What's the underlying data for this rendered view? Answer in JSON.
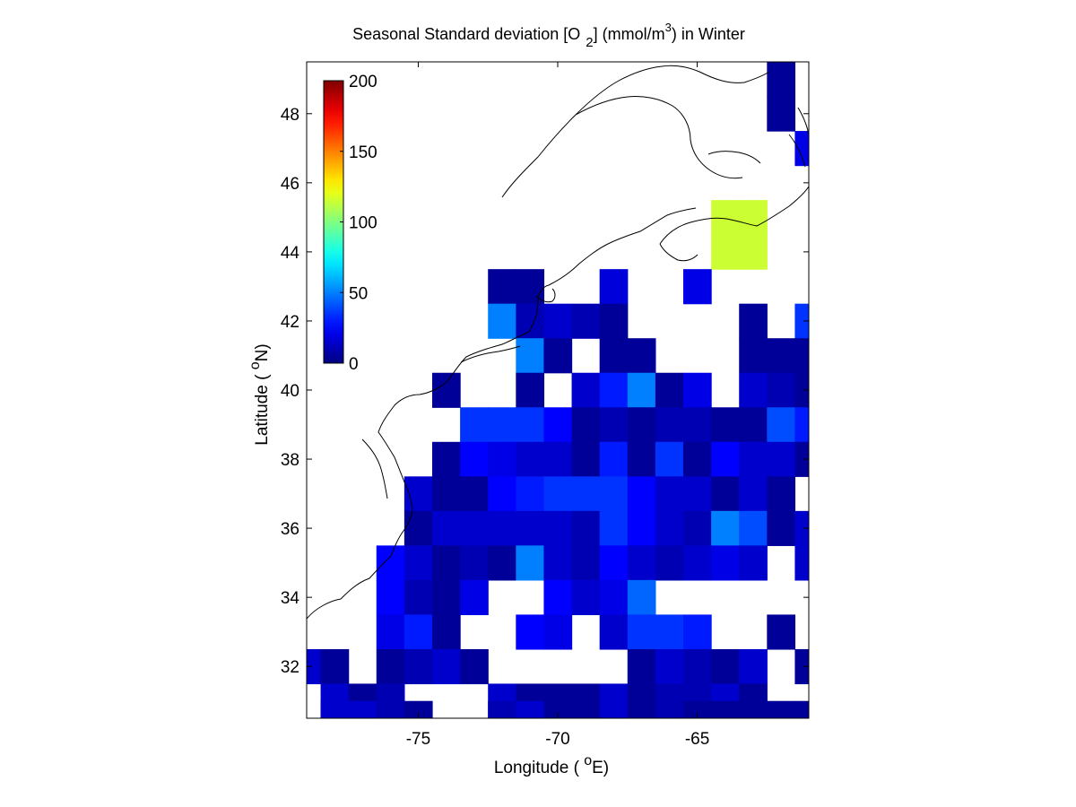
{
  "chart_data": {
    "type": "heatmap",
    "title": {
      "prefix": "Seasonal Standard deviation [O",
      "sub": "2",
      "middle": "] (mmol/m",
      "sup": "3",
      "suffix": ") in  Winter"
    },
    "xlabel": {
      "prefix": "Longitude ( ",
      "sup": "o",
      "suffix": "E)"
    },
    "ylabel": {
      "prefix": "Latitude ( ",
      "sup": "o",
      "suffix": "N)"
    },
    "xlim": [
      -79,
      -61
    ],
    "ylim": [
      30.5,
      49.5
    ],
    "x_ticks": [
      {
        "value": -75,
        "label": "-75"
      },
      {
        "value": -70,
        "label": "-70"
      },
      {
        "value": -65,
        "label": "-65"
      }
    ],
    "y_ticks": [
      {
        "value": 32,
        "label": "32"
      },
      {
        "value": 34,
        "label": "34"
      },
      {
        "value": 36,
        "label": "36"
      },
      {
        "value": 38,
        "label": "38"
      },
      {
        "value": 40,
        "label": "40"
      },
      {
        "value": 42,
        "label": "42"
      },
      {
        "value": 44,
        "label": "44"
      },
      {
        "value": 46,
        "label": "46"
      },
      {
        "value": 48,
        "label": "48"
      }
    ],
    "colorbar": {
      "colormap": "jet",
      "range": [
        0,
        200
      ],
      "placement": "upper-left inside axes",
      "ticks": [
        {
          "value": 0,
          "label": "0"
        },
        {
          "value": 50,
          "label": "50"
        },
        {
          "value": 100,
          "label": "100"
        },
        {
          "value": 150,
          "label": "150"
        },
        {
          "value": 200,
          "label": "200"
        }
      ]
    },
    "grid": false,
    "cell_size_deg": 1,
    "cells": [
      [
        -62,
        49,
        5
      ],
      [
        -62,
        48,
        5
      ],
      [
        -61,
        47,
        20
      ],
      [
        -64,
        44,
        115
      ],
      [
        -64,
        45,
        115
      ],
      [
        -63,
        44,
        115
      ],
      [
        -63,
        45,
        115
      ],
      [
        -72,
        43,
        5
      ],
      [
        -71,
        43,
        5
      ],
      [
        -68,
        43,
        18
      ],
      [
        -65,
        43,
        20
      ],
      [
        -72,
        42,
        50
      ],
      [
        -71,
        42,
        10
      ],
      [
        -70,
        42,
        15
      ],
      [
        -69,
        42,
        10
      ],
      [
        -68,
        42,
        5
      ],
      [
        -63,
        42,
        5
      ],
      [
        -61,
        42,
        35
      ],
      [
        -71,
        41,
        50
      ],
      [
        -70,
        41,
        5
      ],
      [
        -68,
        41,
        5
      ],
      [
        -67,
        41,
        5
      ],
      [
        -63,
        41,
        5
      ],
      [
        -62,
        41,
        5
      ],
      [
        -61,
        41,
        5
      ],
      [
        -74,
        40,
        5
      ],
      [
        -71,
        40,
        5
      ],
      [
        -69,
        40,
        15
      ],
      [
        -68,
        40,
        30
      ],
      [
        -67,
        40,
        50
      ],
      [
        -66,
        40,
        5
      ],
      [
        -65,
        40,
        20
      ],
      [
        -63,
        40,
        15
      ],
      [
        -62,
        40,
        10
      ],
      [
        -61,
        40,
        5
      ],
      [
        -73,
        39,
        35
      ],
      [
        -72,
        39,
        35
      ],
      [
        -71,
        39,
        35
      ],
      [
        -70,
        39,
        25
      ],
      [
        -69,
        39,
        5
      ],
      [
        -68,
        39,
        10
      ],
      [
        -67,
        39,
        5
      ],
      [
        -66,
        39,
        10
      ],
      [
        -65,
        39,
        10
      ],
      [
        -64,
        39,
        5
      ],
      [
        -63,
        39,
        5
      ],
      [
        -62,
        39,
        40
      ],
      [
        -61,
        39,
        30
      ],
      [
        -74,
        38,
        5
      ],
      [
        -73,
        38,
        25
      ],
      [
        -72,
        38,
        20
      ],
      [
        -71,
        38,
        15
      ],
      [
        -70,
        38,
        15
      ],
      [
        -69,
        38,
        5
      ],
      [
        -68,
        38,
        30
      ],
      [
        -67,
        38,
        5
      ],
      [
        -66,
        38,
        35
      ],
      [
        -65,
        38,
        5
      ],
      [
        -64,
        38,
        25
      ],
      [
        -63,
        38,
        15
      ],
      [
        -62,
        38,
        15
      ],
      [
        -61,
        38,
        5
      ],
      [
        -75,
        37,
        15
      ],
      [
        -74,
        37,
        5
      ],
      [
        -73,
        37,
        5
      ],
      [
        -72,
        37,
        25
      ],
      [
        -71,
        37,
        30
      ],
      [
        -70,
        37,
        35
      ],
      [
        -69,
        37,
        35
      ],
      [
        -68,
        37,
        35
      ],
      [
        -67,
        37,
        25
      ],
      [
        -66,
        37,
        15
      ],
      [
        -65,
        37,
        15
      ],
      [
        -64,
        37,
        5
      ],
      [
        -63,
        37,
        15
      ],
      [
        -62,
        37,
        5
      ],
      [
        -75,
        36,
        5
      ],
      [
        -74,
        36,
        15
      ],
      [
        -73,
        36,
        15
      ],
      [
        -72,
        36,
        15
      ],
      [
        -71,
        36,
        15
      ],
      [
        -70,
        36,
        15
      ],
      [
        -69,
        36,
        10
      ],
      [
        -68,
        36,
        35
      ],
      [
        -67,
        36,
        25
      ],
      [
        -66,
        36,
        15
      ],
      [
        -65,
        36,
        10
      ],
      [
        -64,
        36,
        50
      ],
      [
        -63,
        36,
        40
      ],
      [
        -62,
        36,
        5
      ],
      [
        -61,
        36,
        15
      ],
      [
        -76,
        35,
        25
      ],
      [
        -75,
        35,
        15
      ],
      [
        -74,
        35,
        5
      ],
      [
        -73,
        35,
        10
      ],
      [
        -72,
        35,
        5
      ],
      [
        -71,
        35,
        50
      ],
      [
        -70,
        35,
        15
      ],
      [
        -69,
        35,
        10
      ],
      [
        -68,
        35,
        25
      ],
      [
        -67,
        35,
        15
      ],
      [
        -66,
        35,
        10
      ],
      [
        -65,
        35,
        15
      ],
      [
        -64,
        35,
        20
      ],
      [
        -63,
        35,
        15
      ],
      [
        -61,
        35,
        15
      ],
      [
        -76,
        34,
        25
      ],
      [
        -75,
        34,
        10
      ],
      [
        -74,
        34,
        5
      ],
      [
        -73,
        34,
        20
      ],
      [
        -70,
        34,
        25
      ],
      [
        -69,
        34,
        15
      ],
      [
        -68,
        34,
        20
      ],
      [
        -67,
        34,
        45
      ],
      [
        -76,
        33,
        20
      ],
      [
        -75,
        33,
        30
      ],
      [
        -74,
        33,
        5
      ],
      [
        -71,
        33,
        25
      ],
      [
        -70,
        33,
        20
      ],
      [
        -68,
        33,
        15
      ],
      [
        -67,
        33,
        35
      ],
      [
        -66,
        33,
        35
      ],
      [
        -65,
        33,
        30
      ],
      [
        -62,
        33,
        5
      ],
      [
        -79,
        32,
        15
      ],
      [
        -78,
        32,
        5
      ],
      [
        -76,
        32,
        5
      ],
      [
        -75,
        32,
        10
      ],
      [
        -74,
        32,
        15
      ],
      [
        -73,
        32,
        5
      ],
      [
        -67,
        32,
        5
      ],
      [
        -66,
        32,
        15
      ],
      [
        -65,
        32,
        10
      ],
      [
        -64,
        32,
        5
      ],
      [
        -63,
        32,
        15
      ],
      [
        -61,
        32,
        5
      ],
      [
        -78,
        31,
        15
      ],
      [
        -77,
        31,
        5
      ],
      [
        -76,
        31,
        10
      ],
      [
        -72,
        31,
        15
      ],
      [
        -71,
        31,
        5
      ],
      [
        -70,
        31,
        5
      ],
      [
        -69,
        31,
        5
      ],
      [
        -68,
        31,
        15
      ],
      [
        -67,
        31,
        5
      ],
      [
        -66,
        31,
        10
      ],
      [
        -65,
        31,
        10
      ],
      [
        -64,
        31,
        15
      ],
      [
        -63,
        31,
        5
      ],
      [
        -78,
        30.5,
        15
      ],
      [
        -77,
        30.5,
        15
      ],
      [
        -76,
        30.5,
        10
      ],
      [
        -75,
        30.5,
        5
      ],
      [
        -72,
        30.5,
        10
      ],
      [
        -71,
        30.5,
        15
      ],
      [
        -70,
        30.5,
        5
      ],
      [
        -69,
        30.5,
        5
      ],
      [
        -68,
        30.5,
        15
      ],
      [
        -67,
        30.5,
        5
      ],
      [
        -66,
        30.5,
        10
      ],
      [
        -65,
        30.5,
        5
      ],
      [
        -64,
        30.5,
        5
      ],
      [
        -63,
        30.5,
        5
      ],
      [
        -62,
        30.5,
        5
      ],
      [
        -61,
        30.5,
        5
      ]
    ]
  }
}
